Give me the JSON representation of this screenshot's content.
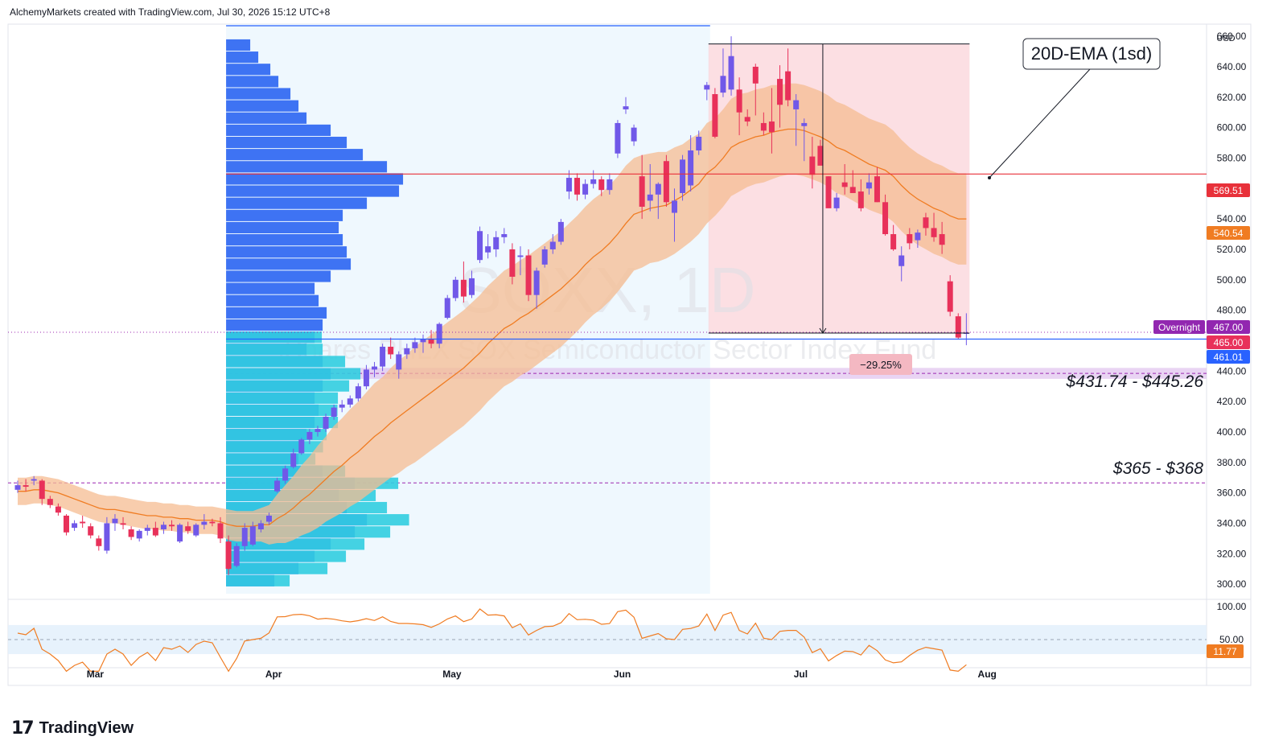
{
  "header": {
    "attribution": "AlchemyMarkets created with TradingView.com, Jul 30, 2026 15:12 UTC+8"
  },
  "footer": {
    "logo_text": "TradingView"
  },
  "watermark": {
    "symbol": "SOXX, 1D",
    "name": "iShares PHLX SOX Semiconductor Sector Index Fund"
  },
  "axis": {
    "currency": "USD"
  },
  "annotations": {
    "ema_label": "20D-EMA (1sd)",
    "drawdown": "−29.25%",
    "zone_upper": "$431.74 - $445.26",
    "zone_lower": "$365 - $368"
  },
  "price_labels": {
    "poc": "569.51",
    "ema": "540.54",
    "overnight_tag": "Overnight",
    "overnight": "467.00",
    "close": "465.00",
    "line": "461.01",
    "rsi": "11.77"
  },
  "colors": {
    "up": "#7058e8",
    "down": "#e8315a",
    "ema": "#f07c22",
    "band": "#f6bc92",
    "poc": "#e8313a",
    "vp_up": "#2a64f2",
    "vp_down": "#31cde0",
    "overnight": "#9227b0",
    "line_label": "#2962ff"
  },
  "chart_data": {
    "type": "candlestick",
    "symbol": "SOXX",
    "timeframe": "1D",
    "currency": "USD",
    "ylim": [
      290,
      668
    ],
    "y_ticks": [
      300,
      320,
      340,
      360,
      380,
      400,
      420,
      440,
      460,
      480,
      500,
      520,
      540,
      560,
      580,
      600,
      620,
      640,
      660
    ],
    "month_labels": [
      {
        "label": "Mar",
        "date": "2026-03-02"
      },
      {
        "label": "Apr",
        "date": "2026-04-01"
      },
      {
        "label": "May",
        "date": "2026-05-01"
      },
      {
        "label": "Jun",
        "date": "2026-06-01"
      },
      {
        "label": "Jul",
        "date": "2026-07-01"
      },
      {
        "label": "Aug",
        "date": "2026-08-03"
      }
    ],
    "candles": [
      [
        "2026-02-23",
        362,
        368,
        360,
        365
      ],
      [
        "2026-02-24",
        365,
        369,
        361,
        364
      ],
      [
        "2026-02-25",
        368,
        371,
        365,
        369
      ],
      [
        "2026-02-26",
        368,
        369,
        352,
        356
      ],
      [
        "2026-02-27",
        356,
        358,
        350,
        352
      ],
      [
        "2026-03-02",
        351,
        353,
        345,
        347
      ],
      [
        "2026-03-03",
        345,
        346,
        332,
        334
      ],
      [
        "2026-03-04",
        337,
        342,
        335,
        340
      ],
      [
        "2026-03-05",
        341,
        345,
        337,
        340
      ],
      [
        "2026-03-06",
        338,
        340,
        330,
        332
      ],
      [
        "2026-03-09",
        330,
        332,
        322,
        325
      ],
      [
        "2026-03-10",
        322,
        344,
        320,
        340
      ],
      [
        "2026-03-11",
        340,
        346,
        335,
        343
      ],
      [
        "2026-03-12",
        340,
        344,
        336,
        339
      ],
      [
        "2026-03-13",
        336,
        338,
        329,
        331
      ],
      [
        "2026-03-16",
        330,
        336,
        328,
        335
      ],
      [
        "2026-03-17",
        335,
        339,
        332,
        337
      ],
      [
        "2026-03-18",
        337,
        341,
        331,
        332
      ],
      [
        "2026-03-19",
        336,
        341,
        333,
        339
      ],
      [
        "2026-03-20",
        339,
        342,
        335,
        338
      ],
      [
        "2026-03-23",
        328,
        340,
        327,
        339
      ],
      [
        "2026-03-24",
        338,
        341,
        333,
        335
      ],
      [
        "2026-03-25",
        332,
        340,
        331,
        339
      ],
      [
        "2026-03-26",
        339,
        346,
        336,
        341
      ],
      [
        "2026-03-27",
        341,
        343,
        338,
        340
      ],
      [
        "2026-03-30",
        340,
        344,
        327,
        330
      ],
      [
        "2026-03-31",
        328,
        332,
        306,
        310
      ],
      [
        "2026-04-01",
        312,
        327,
        311,
        325
      ],
      [
        "2026-04-02",
        325,
        340,
        322,
        337
      ],
      [
        "2026-04-03",
        326,
        341,
        325,
        338
      ],
      [
        "2026-04-06",
        336,
        342,
        334,
        340
      ],
      [
        "2026-04-07",
        341,
        347,
        339,
        345
      ],
      [
        "2026-04-08",
        361,
        370,
        360,
        368
      ],
      [
        "2026-04-09",
        368,
        378,
        366,
        376
      ],
      [
        "2026-04-10",
        377,
        389,
        376,
        386
      ],
      [
        "2026-04-13",
        386,
        396,
        385,
        395
      ],
      [
        "2026-04-14",
        395,
        402,
        392,
        400
      ],
      [
        "2026-04-15",
        400,
        404,
        397,
        402
      ],
      [
        "2026-04-16",
        402,
        412,
        400,
        410
      ],
      [
        "2026-04-17",
        410,
        418,
        408,
        416
      ],
      [
        "2026-04-20",
        416,
        421,
        413,
        418
      ],
      [
        "2026-04-21",
        418,
        424,
        416,
        422
      ],
      [
        "2026-04-22",
        422,
        432,
        420,
        430
      ],
      [
        "2026-04-23",
        430,
        444,
        428,
        441
      ],
      [
        "2026-04-24",
        441,
        446,
        436,
        443
      ],
      [
        "2026-04-27",
        443,
        458,
        440,
        456
      ],
      [
        "2026-04-28",
        456,
        462,
        448,
        451
      ],
      [
        "2026-04-29",
        441,
        453,
        435,
        451
      ],
      [
        "2026-04-30",
        451,
        458,
        448,
        455
      ],
      [
        "2026-05-01",
        455,
        462,
        452,
        459
      ],
      [
        "2026-05-04",
        459,
        464,
        452,
        461
      ],
      [
        "2026-05-05",
        461,
        467,
        455,
        458
      ],
      [
        "2026-05-06",
        458,
        472,
        455,
        471
      ],
      [
        "2026-05-07",
        475,
        490,
        474,
        488
      ],
      [
        "2026-05-08",
        488,
        502,
        486,
        500
      ],
      [
        "2026-05-11",
        500,
        512,
        485,
        489
      ],
      [
        "2026-05-12",
        490,
        506,
        488,
        501
      ],
      [
        "2026-05-13",
        513,
        535,
        511,
        532
      ],
      [
        "2026-05-14",
        518,
        530,
        514,
        522
      ],
      [
        "2026-05-15",
        520,
        532,
        515,
        528
      ],
      [
        "2026-05-18",
        528,
        534,
        524,
        530
      ],
      [
        "2026-05-19",
        520,
        524,
        497,
        502
      ],
      [
        "2026-05-20",
        515,
        522,
        503,
        516
      ],
      [
        "2026-05-21",
        516,
        520,
        486,
        490
      ],
      [
        "2026-05-22",
        490,
        508,
        481,
        506
      ],
      [
        "2026-05-25",
        510,
        522,
        508,
        520
      ],
      [
        "2026-05-26",
        520,
        530,
        517,
        525
      ],
      [
        "2026-05-27",
        525,
        540,
        523,
        538
      ],
      [
        "2026-05-28",
        558,
        572,
        553,
        567
      ],
      [
        "2026-05-29",
        567,
        570,
        552,
        556
      ],
      [
        "2026-06-01",
        556,
        566,
        553,
        563
      ],
      [
        "2026-06-02",
        563,
        572,
        560,
        566
      ],
      [
        "2026-06-03",
        566,
        568,
        555,
        559
      ],
      [
        "2026-06-04",
        559,
        570,
        556,
        566
      ],
      [
        "2026-06-05",
        583,
        605,
        580,
        603
      ],
      [
        "2026-06-08",
        612,
        620,
        609,
        614
      ],
      [
        "2026-06-09",
        591,
        602,
        588,
        600
      ],
      [
        "2026-06-10",
        568,
        582,
        540,
        548
      ],
      [
        "2026-06-11",
        552,
        576,
        545,
        556
      ],
      [
        "2026-06-12",
        556,
        564,
        540,
        563
      ],
      [
        "2026-06-15",
        578,
        582,
        548,
        551
      ],
      [
        "2026-06-16",
        544,
        560,
        525,
        552
      ],
      [
        "2026-06-17",
        557,
        582,
        552,
        579
      ],
      [
        "2026-06-18",
        562,
        595,
        558,
        585
      ],
      [
        "2026-06-19",
        585,
        598,
        582,
        594
      ],
      [
        "2026-06-22",
        625,
        630,
        618,
        628
      ],
      [
        "2026-06-23",
        622,
        626,
        593,
        594
      ],
      [
        "2026-06-24",
        623,
        652,
        620,
        634
      ],
      [
        "2026-06-25",
        625,
        660,
        621,
        647
      ],
      [
        "2026-06-26",
        625,
        633,
        595,
        610
      ],
      [
        "2026-06-29",
        607,
        612,
        601,
        604
      ],
      [
        "2026-06-30",
        640,
        642,
        608,
        629
      ],
      [
        "2026-07-01",
        603,
        610,
        595,
        598
      ],
      [
        "2026-07-02",
        604,
        626,
        583,
        597
      ],
      [
        "2026-07-03",
        632,
        641,
        600,
        615
      ],
      [
        "2026-07-06",
        637,
        652,
        614,
        618
      ],
      [
        "2026-07-07",
        612,
        622,
        588,
        618
      ],
      [
        "2026-07-08",
        601,
        606,
        578,
        603
      ],
      [
        "2026-07-09",
        581,
        594,
        560,
        569
      ],
      [
        "2026-07-10",
        588,
        592,
        577,
        575
      ],
      [
        "2026-07-13",
        568,
        568,
        548,
        547
      ],
      [
        "2026-07-14",
        547,
        557,
        545,
        554
      ],
      [
        "2026-07-15",
        564,
        576,
        556,
        561
      ],
      [
        "2026-07-16",
        561,
        572,
        560,
        557
      ],
      [
        "2026-07-17",
        558,
        566,
        545,
        547
      ],
      [
        "2026-07-20",
        560,
        570,
        556,
        564
      ],
      [
        "2026-07-21",
        568,
        574,
        551,
        551
      ],
      [
        "2026-07-22",
        551,
        556,
        529,
        530
      ],
      [
        "2026-07-23",
        530,
        536,
        519,
        520
      ],
      [
        "2026-07-24",
        509,
        522,
        499,
        516
      ],
      [
        "2026-07-27",
        530,
        534,
        520,
        524
      ],
      [
        "2026-07-28",
        526,
        533,
        521,
        531
      ],
      [
        "2026-07-29",
        541,
        544,
        529,
        534
      ],
      [
        "2026-07-30",
        534,
        544,
        525,
        528
      ],
      [
        "2026-07-31",
        530,
        538,
        517,
        523
      ],
      [
        "2026-08-03",
        499,
        503,
        476,
        479
      ],
      [
        "2026-08-04",
        476,
        478,
        461,
        462
      ],
      [
        "2026-08-05",
        465,
        478,
        457,
        465
      ]
    ],
    "ema_20": [
      361,
      361,
      362,
      362,
      361,
      360,
      358,
      356,
      354,
      352,
      350,
      349,
      349,
      348,
      347,
      346,
      345,
      345,
      344,
      344,
      343,
      343,
      342,
      342,
      342,
      341,
      339,
      338,
      338,
      338,
      339,
      339,
      343,
      346,
      350,
      355,
      359,
      364,
      369,
      374,
      378,
      383,
      387,
      392,
      397,
      401,
      406,
      410,
      414,
      418,
      422,
      426,
      430,
      434,
      438,
      442,
      447,
      452,
      458,
      463,
      468,
      471,
      475,
      478,
      482,
      486,
      490,
      494,
      499,
      504,
      510,
      515,
      519,
      524,
      530,
      537,
      543,
      545,
      547,
      548,
      549,
      552,
      555,
      559,
      563,
      570,
      574,
      580,
      587,
      590,
      592,
      594,
      595,
      597,
      598,
      599,
      599,
      598,
      596,
      594,
      591,
      587,
      585,
      582,
      579,
      576,
      574,
      572,
      568,
      562,
      557,
      553,
      550,
      547,
      545,
      542,
      540,
      540
    ],
    "band_sd": [
      9,
      9,
      9,
      9,
      9,
      9,
      9,
      9,
      9,
      9,
      9,
      9,
      9,
      9,
      9,
      9,
      9,
      9,
      9,
      9,
      9,
      9,
      9,
      9,
      9,
      9,
      10,
      10,
      10,
      10,
      11,
      13,
      16,
      19,
      21,
      23,
      25,
      27,
      28,
      30,
      31,
      32,
      33,
      34,
      35,
      35,
      36,
      37,
      37,
      38,
      38,
      38,
      38,
      38,
      38,
      38,
      38,
      38,
      38,
      38,
      38,
      38,
      38,
      38,
      38,
      38,
      38,
      38,
      38,
      38,
      38,
      38,
      38,
      38,
      38,
      38,
      37,
      37,
      36,
      36,
      35,
      35,
      34,
      34,
      33,
      33,
      32,
      32,
      32,
      32,
      31,
      31,
      31,
      31,
      30,
      30,
      30,
      30,
      30,
      30,
      30,
      30,
      30,
      30,
      30,
      30,
      30,
      30,
      30,
      30,
      30,
      30,
      30,
      30,
      30,
      30,
      30,
      30
    ],
    "rsi_ticks": [
      50,
      100
    ],
    "rsi_last": 11.77,
    "poc_price": 569.51,
    "ema_price": 540.54,
    "overnight_price": 467.0,
    "close_price": 465.0,
    "horizontal_line": 461.01,
    "drawdown_pct": -29.25,
    "zones": [
      {
        "low": 431.74,
        "high": 445.26
      },
      {
        "low": 365,
        "high": 368
      }
    ],
    "volume_profile": {
      "bins": [
        [
          302,
          60,
          25
        ],
        [
          310,
          90,
          45
        ],
        [
          318,
          110,
          50
        ],
        [
          326,
          130,
          55
        ],
        [
          334,
          160,
          60
        ],
        [
          342,
          175,
          70
        ],
        [
          350,
          150,
          65
        ],
        [
          358,
          140,
          60
        ],
        [
          366,
          160,
          70
        ],
        [
          374,
          120,
          40
        ],
        [
          382,
          90,
          30
        ],
        [
          390,
          95,
          35
        ],
        [
          398,
          100,
          35
        ],
        [
          406,
          110,
          40
        ],
        [
          414,
          115,
          35
        ],
        [
          422,
          110,
          40
        ],
        [
          430,
          120,
          45
        ],
        [
          438,
          130,
          50
        ],
        [
          446,
          120,
          40
        ],
        [
          454,
          100,
          30
        ],
        [
          462,
          110,
          20
        ],
        [
          470,
          120,
          0
        ],
        [
          478,
          125,
          0
        ],
        [
          486,
          115,
          0
        ],
        [
          494,
          110,
          0
        ],
        [
          502,
          130,
          0
        ],
        [
          510,
          155,
          0
        ],
        [
          518,
          150,
          0
        ],
        [
          526,
          145,
          0
        ],
        [
          534,
          140,
          0
        ],
        [
          542,
          145,
          0
        ],
        [
          550,
          175,
          0
        ],
        [
          558,
          215,
          0
        ],
        [
          566,
          220,
          0
        ],
        [
          574,
          200,
          0
        ],
        [
          582,
          170,
          0
        ],
        [
          590,
          150,
          0
        ],
        [
          598,
          130,
          0
        ],
        [
          606,
          100,
          0
        ],
        [
          614,
          90,
          0
        ],
        [
          622,
          80,
          0
        ],
        [
          630,
          65,
          0
        ],
        [
          638,
          55,
          0
        ],
        [
          646,
          40,
          0
        ],
        [
          654,
          30,
          0
        ]
      ],
      "range": [
        "2026-03-31",
        "2026-06-22"
      ]
    }
  }
}
